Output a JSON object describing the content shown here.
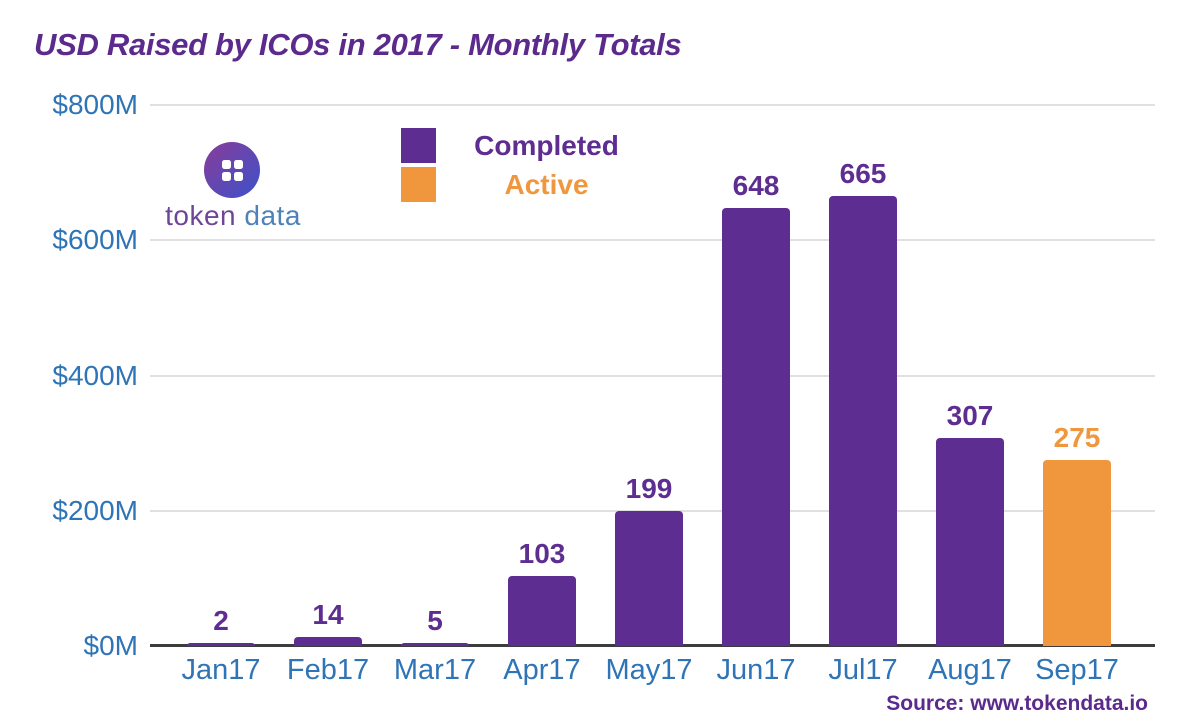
{
  "title": "USD Raised by ICOs in 2017 - Monthly Totals",
  "source": "Source: www.tokendata.io",
  "logo": {
    "icon": "grid-circle-icon",
    "word1": "token",
    "word2": "data"
  },
  "colors": {
    "completed": "#5E2D91",
    "active": "#F0973D",
    "title_purple": "#5B2A8C",
    "axis_label_blue": "#2E74B6",
    "gridline_gray": "#E0E0E0",
    "axis_line_dark": "#3C3C3C",
    "logo_gradient_start": "#823E9E",
    "logo_gradient_end": "#3F51C8",
    "logo_token_purple": "#6F4598",
    "logo_data_blue": "#4E82B8"
  },
  "legend": {
    "items": [
      {
        "label": "Completed",
        "status": "completed"
      },
      {
        "label": "Active",
        "status": "active"
      }
    ]
  },
  "chart_data": {
    "type": "bar",
    "title": "USD Raised by ICOs in 2017 - Monthly Totals",
    "unit": "USD millions",
    "categories": [
      "Jan17",
      "Feb17",
      "Mar17",
      "Apr17",
      "May17",
      "Jun17",
      "Jul17",
      "Aug17",
      "Sep17"
    ],
    "values": [
      2,
      14,
      5,
      103,
      199,
      648,
      665,
      307,
      275
    ],
    "bar_status": [
      "completed",
      "completed",
      "completed",
      "completed",
      "completed",
      "completed",
      "completed",
      "completed",
      "active"
    ],
    "series": [
      {
        "name": "Completed",
        "values": [
          2,
          14,
          5,
          103,
          199,
          648,
          665,
          307,
          null
        ]
      },
      {
        "name": "Active",
        "values": [
          null,
          null,
          null,
          null,
          null,
          null,
          null,
          null,
          275
        ]
      }
    ],
    "ytick_labels": [
      "$800M",
      "$600M",
      "$400M",
      "$200M",
      "$0M"
    ],
    "ytick_values": [
      800,
      600,
      400,
      200,
      0
    ],
    "ylim": [
      0,
      800
    ],
    "xlabel": "",
    "ylabel": "",
    "grid": true,
    "legend_position": "top-left-inside",
    "value_labels": "above-bars"
  }
}
